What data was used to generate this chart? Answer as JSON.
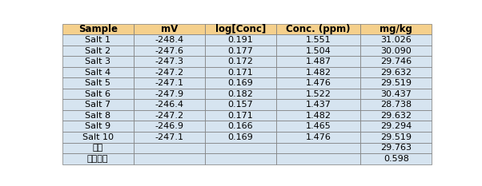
{
  "columns": [
    "Sample",
    "mV",
    "log[Conc]",
    "Conc. (ppm)",
    "mg/kg"
  ],
  "rows": [
    [
      "Salt 1",
      "-248.4",
      "0.191",
      "1.551",
      "31.026"
    ],
    [
      "Salt 2",
      "-247.6",
      "0.177",
      "1.504",
      "30.090"
    ],
    [
      "Salt 3",
      "-247.3",
      "0.172",
      "1.487",
      "29.746"
    ],
    [
      "Salt 4",
      "-247.2",
      "0.171",
      "1.482",
      "29.632"
    ],
    [
      "Salt 5",
      "-247.1",
      "0.169",
      "1.476",
      "29.519"
    ],
    [
      "Salt 6",
      "-247.9",
      "0.182",
      "1.522",
      "30.437"
    ],
    [
      "Salt 7",
      "-246.4",
      "0.157",
      "1.437",
      "28.738"
    ],
    [
      "Salt 8",
      "-247.2",
      "0.171",
      "1.482",
      "29.632"
    ],
    [
      "Salt 9",
      "-246.9",
      "0.166",
      "1.465",
      "29.294"
    ],
    [
      "Salt 10",
      "-247.1",
      "0.169",
      "1.476",
      "29.519"
    ]
  ],
  "footer_rows": [
    [
      "평균",
      "",
      "",
      "",
      "29.763"
    ],
    [
      "표준편차",
      "",
      "",
      "",
      "0.598"
    ]
  ],
  "header_bg": "#F5D08C",
  "data_row_bg": "#D6E4F0",
  "footer_bg": "#D6E4F0",
  "border_color": "#7a7a7a",
  "header_font_size": 8.5,
  "data_font_size": 8.0,
  "col_widths": [
    1.1,
    1.1,
    1.1,
    1.3,
    1.1
  ],
  "figsize": [
    6.02,
    2.33
  ],
  "dpi": 100
}
